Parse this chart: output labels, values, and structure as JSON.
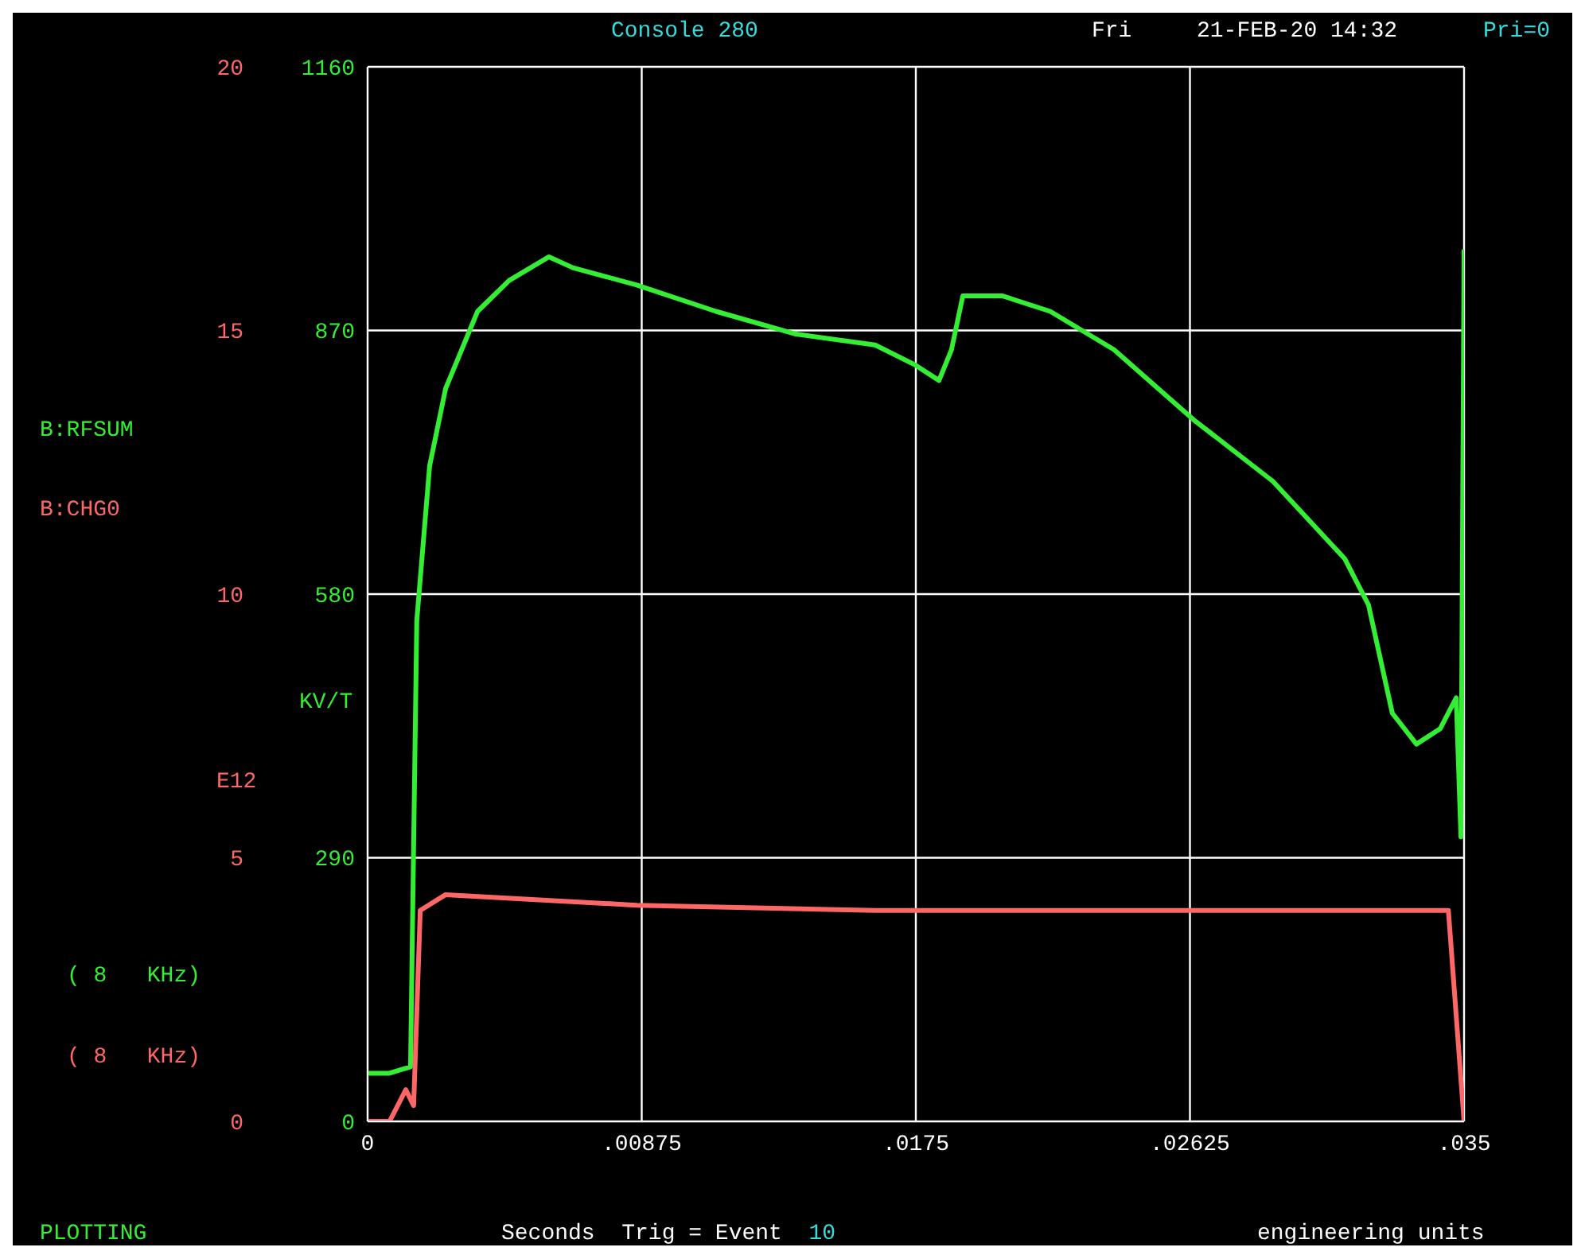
{
  "chart_data": {
    "type": "line",
    "title": "Console 280",
    "xlabel": "Seconds  Trig = Event  10",
    "ylabel": "KV/T",
    "y2label": "E12",
    "annotations": [
      "Fri",
      "21-FEB-20 14:32",
      "Pri=0",
      "( 8   KHz)",
      "( 8   KHz)",
      "PLOTTING",
      "engineering units"
    ],
    "xlim": [
      0,
      0.035
    ],
    "xticks": [
      0,
      {
        "value": 0.00875,
        "label": ".00875"
      },
      {
        "value": 0.0175,
        "label": ".0175"
      },
      {
        "value": 0.02625,
        "label": ".02625"
      },
      {
        "value": 0.035,
        "label": ".035"
      }
    ],
    "ylim": [
      0,
      1160
    ],
    "yticks": [
      0,
      290,
      580,
      870,
      1160
    ],
    "y2lim": [
      0,
      20
    ],
    "y2ticks": [
      0,
      5,
      10,
      15,
      20
    ],
    "grid": true,
    "legend": "left",
    "marker": "none",
    "line_style": "solid",
    "series": [
      {
        "name": "B:RFSUM",
        "color": "#33ee33",
        "x": [
          0,
          0.0007,
          0.00137,
          0.00157,
          0.00198,
          0.00249,
          0.00351,
          0.00452,
          0.00579,
          0.00655,
          0.00859,
          0.01112,
          0.01367,
          0.0162,
          0.01748,
          0.01824,
          0.01864,
          0.019,
          0.02027,
          0.02179,
          0.02382,
          0.02636,
          0.0289,
          0.03119,
          0.03195,
          0.03271,
          0.03348,
          0.03424,
          0.03475,
          0.0349,
          0.035
        ],
        "values": [
          53,
          53,
          60,
          551,
          721,
          806,
          891,
          925,
          951,
          939,
          920,
          891,
          866,
          854,
          832,
          815,
          849,
          908,
          908,
          891,
          849,
          772,
          704,
          619,
          568,
          449,
          415,
          432,
          466,
          313,
          959
        ]
      },
      {
        "name": "B:CHG0",
        "color": "#ff6666",
        "axis": "y2",
        "x": [
          0,
          0.0007,
          0.00122,
          0.00147,
          0.00168,
          0.00249,
          0.00859,
          0.0162,
          0.025,
          0.0345,
          0.035
        ],
        "values": [
          0,
          0,
          0.6,
          0.3,
          4.0,
          4.3,
          4.1,
          4.0,
          4.0,
          4.0,
          0
        ]
      }
    ]
  }
}
